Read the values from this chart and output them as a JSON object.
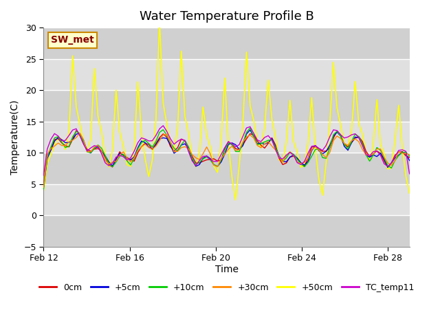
{
  "title": "Water Temperature Profile B",
  "xlabel": "Time",
  "ylabel": "Temperature(C)",
  "ylim": [
    -5,
    30
  ],
  "yticks": [
    -5,
    0,
    5,
    10,
    15,
    20,
    25,
    30
  ],
  "xlim_days": [
    0,
    17
  ],
  "x_tick_labels": [
    "Feb 12",
    "Feb 16",
    "Feb 20",
    "Feb 24",
    "Feb 28"
  ],
  "x_tick_positions": [
    0,
    4,
    8,
    12,
    16
  ],
  "background_color": "#ffffff",
  "plot_bg_color": "#e0e0e0",
  "grid_color": "#ffffff",
  "band_color": "#d0d0d0",
  "series": [
    {
      "label": "0cm",
      "color": "#dd0000",
      "lw": 1.0
    },
    {
      "label": "+5cm",
      "color": "#0000dd",
      "lw": 1.0
    },
    {
      "label": "+10cm",
      "color": "#00cc00",
      "lw": 1.0
    },
    {
      "label": "+30cm",
      "color": "#ff8800",
      "lw": 1.0
    },
    {
      "label": "+50cm",
      "color": "#ffff00",
      "lw": 1.2
    },
    {
      "label": "TC_temp11",
      "color": "#cc00cc",
      "lw": 1.0
    }
  ],
  "annotation_text": "SW_met",
  "annotation_color": "#880000",
  "annotation_bg": "#ffffcc",
  "annotation_edge": "#cc8800",
  "title_fontsize": 13,
  "axis_fontsize": 10,
  "tick_fontsize": 9,
  "legend_fontsize": 9
}
